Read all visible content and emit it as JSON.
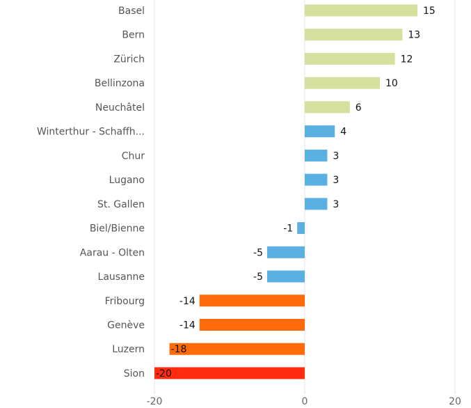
{
  "chart_data": {
    "type": "hbar",
    "categories": [
      "Basel",
      "Bern",
      "Zürich",
      "Bellinzona",
      "Neuchâtel",
      "Winterthur - Schaffh...",
      "Chur",
      "Lugano",
      "St. Gallen",
      "Biel/Bienne",
      "Aarau - Olten",
      "Lausanne",
      "Fribourg",
      "Genève",
      "Luzern",
      "Sion"
    ],
    "values": [
      15,
      13,
      12,
      10,
      6,
      4,
      3,
      3,
      3,
      -1,
      -5,
      -5,
      -14,
      -14,
      -18,
      -20
    ],
    "colors": [
      "#d5e09e",
      "#d5e09e",
      "#d5e09e",
      "#d5e09e",
      "#d5e09e",
      "#5aafe3",
      "#5aafe3",
      "#5aafe3",
      "#5aafe3",
      "#5aafe3",
      "#5aafe3",
      "#5aafe3",
      "#ff6a0a",
      "#ff6a0a",
      "#ff6a0a",
      "#ff2a10"
    ],
    "xlim": [
      -20,
      20
    ],
    "xticks": [
      -20,
      0,
      20
    ],
    "grid": true
  }
}
